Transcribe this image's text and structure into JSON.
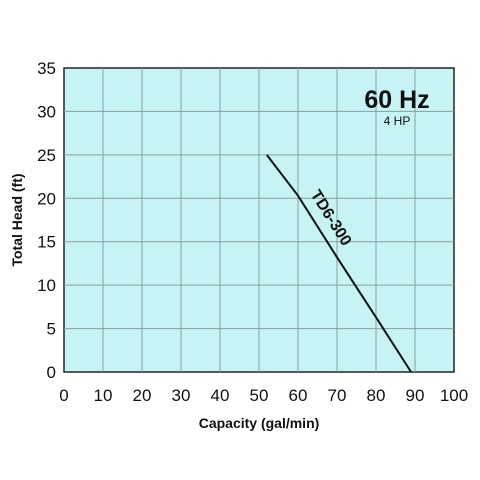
{
  "chart_data": {
    "type": "line",
    "xlabel": "Capacity (gal/min)",
    "ylabel": "Total Head (ft)",
    "xlim": [
      0,
      100
    ],
    "ylim": [
      0,
      35
    ],
    "x_ticks": [
      0,
      10,
      20,
      30,
      40,
      50,
      60,
      70,
      80,
      90,
      100
    ],
    "y_ticks": [
      0,
      5,
      10,
      15,
      20,
      25,
      30,
      35
    ],
    "grid": true,
    "annotations": {
      "frequency": "60 Hz",
      "power": "4 HP"
    },
    "series": [
      {
        "name": "TD6-300",
        "x": [
          52,
          60,
          70,
          80,
          89
        ],
        "y": [
          25,
          20.3,
          13.2,
          6.3,
          0
        ]
      }
    ]
  },
  "colors": {
    "plot_background": "#c6f4f4",
    "grid": "#8a9ea0",
    "curve": "#111111"
  }
}
